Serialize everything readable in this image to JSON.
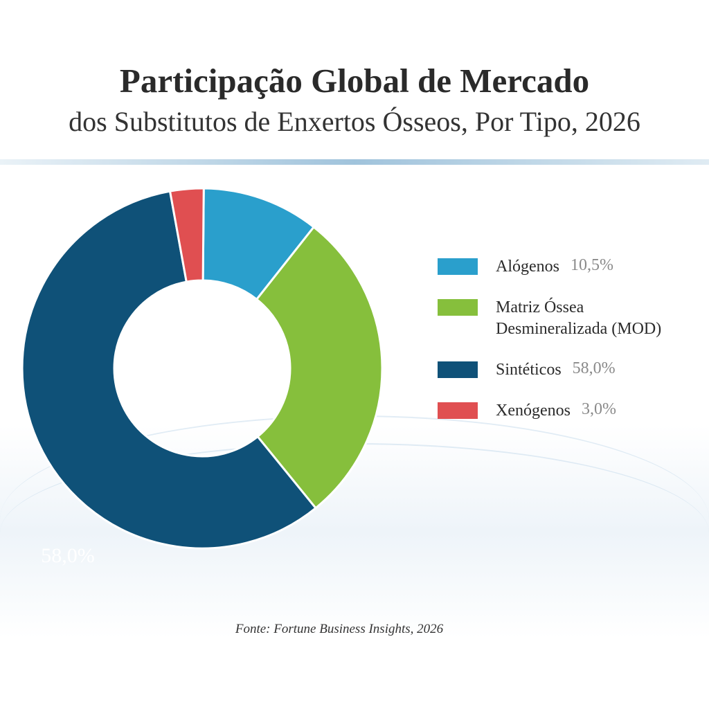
{
  "chart_data": {
    "type": "pie",
    "variant": "donut",
    "title": "Participação Global de Mercado",
    "subtitle": "dos Substitutos de Enxertos Ósseos, Por Tipo, 2026",
    "slices": [
      {
        "name": "Alógenos",
        "value": 10.5,
        "value_label": "10,5%",
        "color": "#2a9fcc"
      },
      {
        "name": "Matriz Óssea Desmineralizada (MOD)",
        "name_line1": "Matriz Óssea",
        "name_line2": "Desmineralizada (MOD)",
        "value": 28.5,
        "value_label": "",
        "color": "#86bf3c"
      },
      {
        "name": "Sintéticos",
        "value": 58.0,
        "value_label": "58,0%",
        "color": "#0f5178"
      },
      {
        "name": "Xenógenos",
        "value": 3.0,
        "value_label": "3,0%",
        "color": "#e04f51"
      }
    ],
    "data_labels": [
      {
        "slice": "Sintéticos",
        "text": "58,0%"
      }
    ],
    "legend_position": "right",
    "source": "Fonte: Fortune Business Insights, 2026"
  }
}
